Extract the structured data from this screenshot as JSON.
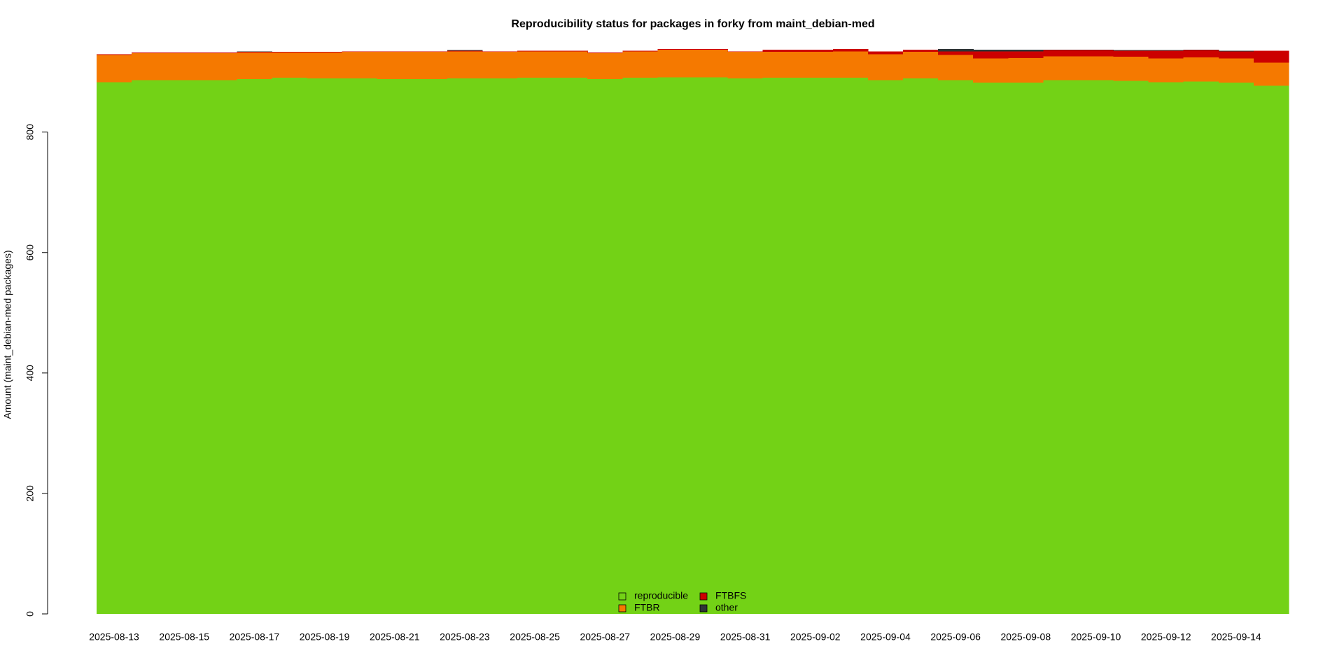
{
  "chart_data": {
    "type": "stacked-step-area",
    "title": "Reproducibility status for packages in forky from maint_debian-med",
    "y_label": "Amount (maint_debian-med packages)",
    "categories": [
      "2025-08-13",
      null,
      "2025-08-15",
      null,
      "2025-08-17",
      null,
      "2025-08-19",
      null,
      "2025-08-21",
      null,
      "2025-08-23",
      null,
      "2025-08-25",
      null,
      "2025-08-27",
      null,
      "2025-08-29",
      null,
      "2025-08-31",
      null,
      "2025-09-02",
      null,
      "2025-09-04",
      null,
      "2025-09-06",
      null,
      "2025-09-08",
      null,
      "2025-09-10",
      null,
      "2025-09-12",
      null,
      "2025-09-14",
      null
    ],
    "series": [
      {
        "name": "reproducible",
        "color": "#73d216",
        "values": [
          883,
          886,
          886,
          886,
          888,
          890,
          889,
          889,
          888,
          888,
          889,
          889,
          890,
          890,
          888,
          890,
          891,
          891,
          889,
          890,
          890,
          890,
          886,
          889,
          886,
          882,
          882,
          886,
          886,
          885,
          883,
          884,
          882,
          877
        ]
      },
      {
        "name": "FTBR",
        "color": "#f57900",
        "values": [
          45,
          45,
          45,
          45,
          44,
          42,
          43,
          44,
          45,
          45,
          45,
          44,
          44,
          44,
          43,
          44,
          46,
          46,
          44,
          43,
          43,
          44,
          43,
          44,
          42,
          40,
          41,
          40,
          40,
          40,
          39,
          40,
          40,
          38
        ]
      },
      {
        "name": "FTBFS",
        "color": "#cc0000",
        "values": [
          1,
          1,
          1,
          1,
          1,
          1,
          1,
          1,
          1,
          1,
          1,
          1,
          1,
          1,
          1,
          1,
          1,
          1,
          1,
          4,
          4,
          4,
          5,
          4,
          6,
          12,
          11,
          10,
          10,
          10,
          13,
          12,
          12,
          20
        ]
      },
      {
        "name": "other",
        "color": "#2e3436",
        "values": [
          0,
          0,
          0,
          0,
          1,
          0,
          0,
          0,
          0,
          0,
          1,
          0,
          0,
          0,
          0,
          0,
          0,
          0,
          0,
          0,
          0,
          0,
          0,
          0,
          4,
          3,
          3,
          1,
          1,
          1,
          1,
          1,
          1,
          0
        ]
      }
    ],
    "ylim": [
      0,
      960
    ],
    "yticks": [
      0,
      200,
      400,
      600,
      800
    ],
    "legend": "bottom-center"
  }
}
